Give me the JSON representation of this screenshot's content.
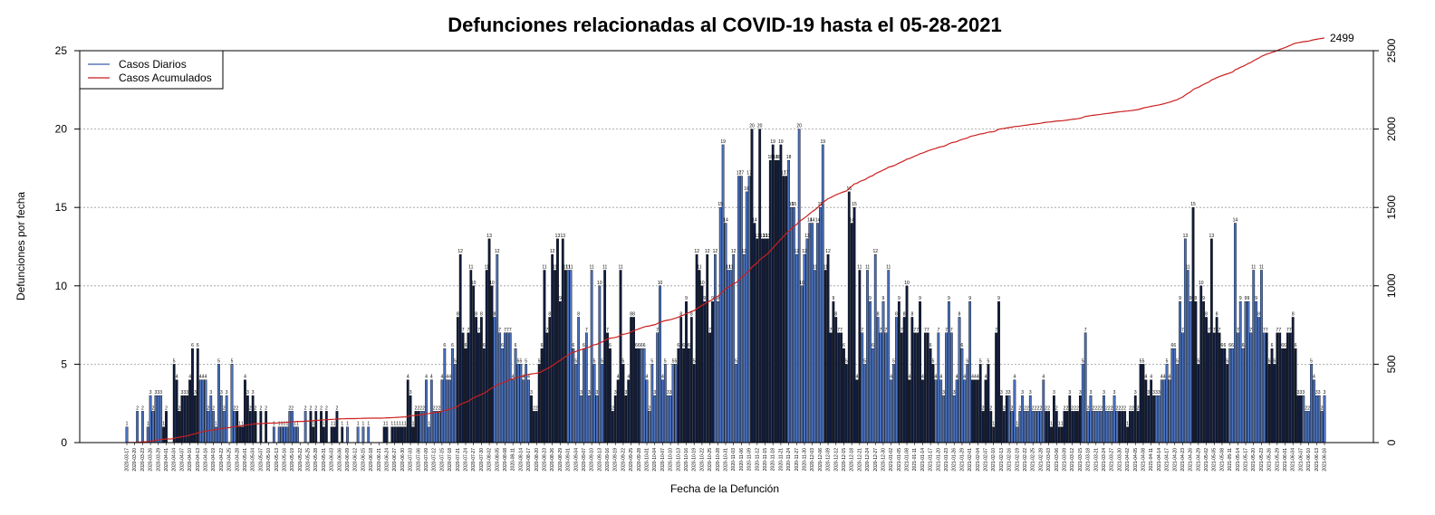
{
  "chart_data": {
    "type": "bar",
    "title": "Defunciones relacionadas al COVID-19 hasta el 05-28-2021",
    "xlabel": "Fecha de la Defunción",
    "ylabel": "Defunciones por fecha",
    "ylim": [
      0,
      25
    ],
    "y_ticks": [
      "0",
      "5",
      "10",
      "15",
      "20",
      "25"
    ],
    "y2lim": [
      0,
      2500
    ],
    "y2_ticks": [
      "0",
      "500",
      "1000",
      "1500",
      "2000",
      "2500"
    ],
    "grid": "horizontal dotted",
    "legend_position": "top-left",
    "legend": [
      {
        "label": "Casos Diarios",
        "color": "#3b5fa8"
      },
      {
        "label": "Casos Acumulados",
        "color": "#cc1f1f"
      }
    ],
    "bar_colors": [
      "#4a72c0",
      "#101c3c"
    ],
    "cumulative_color": "#cc1f1f",
    "start_date": "2020-03-17",
    "end_date": "2021-05-28",
    "x_tick_step": 3,
    "final_cumulative_label": "2499",
    "series": [
      {
        "name": "Casos Diarios",
        "values": [
          1,
          0,
          0,
          0,
          2,
          0,
          2,
          0,
          1,
          3,
          2,
          3,
          3,
          3,
          1,
          2,
          0,
          0,
          5,
          4,
          2,
          3,
          3,
          3,
          4,
          6,
          3,
          6,
          4,
          4,
          4,
          2,
          3,
          2,
          1,
          5,
          3,
          2,
          3,
          0,
          5,
          2,
          2,
          1,
          1,
          4,
          3,
          2,
          3,
          2,
          0,
          2,
          0,
          2,
          0,
          0,
          1,
          0,
          1,
          1,
          1,
          1,
          2,
          2,
          1,
          1,
          0,
          0,
          2,
          0,
          2,
          1,
          2,
          0,
          2,
          1,
          2,
          0,
          1,
          1,
          2,
          0,
          1,
          0,
          1,
          0,
          0,
          0,
          1,
          0,
          1,
          0,
          1,
          0,
          0,
          0,
          0,
          0,
          1,
          1,
          0,
          1,
          1,
          1,
          1,
          1,
          1,
          4,
          3,
          1,
          2,
          2,
          2,
          2,
          4,
          1,
          4,
          2,
          2,
          2,
          4,
          6,
          4,
          4,
          6,
          5,
          8,
          12,
          7,
          6,
          7,
          11,
          10,
          8,
          7,
          8,
          6,
          11,
          13,
          10,
          8,
          12,
          7,
          6,
          7,
          7,
          7,
          4,
          6,
          5,
          5,
          4,
          5,
          4,
          3,
          2,
          2,
          5,
          6,
          11,
          7,
          8,
          12,
          11,
          13,
          9,
          13,
          11,
          11,
          11,
          6,
          5,
          8,
          3,
          6,
          7,
          3,
          11,
          5,
          3,
          10,
          5,
          11,
          7,
          6,
          2,
          3,
          4,
          11,
          5,
          3,
          4,
          8,
          8,
          6,
          6,
          6,
          6,
          4,
          2,
          5,
          3,
          7,
          10,
          4,
          5,
          3,
          3,
          5,
          5,
          6,
          8,
          6,
          9,
          6,
          8,
          5,
          12,
          11,
          10,
          9,
          12,
          7,
          9,
          12,
          9,
          15,
          19,
          14,
          11,
          11,
          12,
          5,
          17,
          17,
          12,
          16,
          17,
          20,
          14,
          13,
          20,
          13,
          13,
          13,
          18,
          19,
          18,
          18,
          19,
          17,
          17,
          18,
          15,
          15,
          12,
          20,
          10,
          12,
          13,
          14,
          14,
          11,
          14,
          15,
          19,
          11,
          12,
          7,
          9,
          8,
          7,
          7,
          6,
          5,
          16,
          14,
          15,
          4,
          11,
          7,
          5,
          11,
          9,
          6,
          12,
          8,
          7,
          9,
          7,
          11,
          4,
          5,
          8,
          9,
          7,
          8,
          10,
          4,
          8,
          7,
          7,
          9,
          4,
          7,
          7,
          6,
          5,
          4,
          7,
          4,
          3,
          7,
          9,
          7,
          3,
          4,
          8,
          6,
          4,
          5,
          9,
          4,
          4,
          4,
          5,
          2,
          4,
          5,
          2,
          1,
          7,
          9,
          3,
          2,
          3,
          3,
          2,
          4,
          1,
          2,
          3,
          2,
          2,
          3,
          2,
          2,
          2,
          2,
          4,
          2,
          2,
          1,
          3,
          2,
          1,
          1,
          2,
          2,
          3,
          2,
          2,
          2,
          3,
          5,
          7,
          2,
          3,
          2,
          2,
          2,
          2,
          3,
          2,
          2,
          2,
          3,
          2,
          2,
          2,
          2,
          1,
          2,
          2,
          3,
          2,
          5,
          5,
          4,
          3,
          4,
          3,
          3,
          3,
          4,
          4,
          5,
          4,
          6,
          6,
          5,
          9,
          7,
          13,
          11,
          9,
          15,
          9,
          5,
          10,
          9,
          8,
          7,
          13,
          7,
          8,
          7,
          6,
          6,
          5,
          6,
          6,
          14,
          7,
          9,
          6,
          9,
          9,
          7,
          11,
          9,
          8,
          11,
          7,
          7,
          5,
          6,
          5,
          7,
          7,
          6,
          6,
          7,
          7,
          8,
          6,
          3,
          3,
          3,
          2,
          2,
          5,
          4,
          3,
          3,
          2,
          3
        ]
      }
    ]
  }
}
